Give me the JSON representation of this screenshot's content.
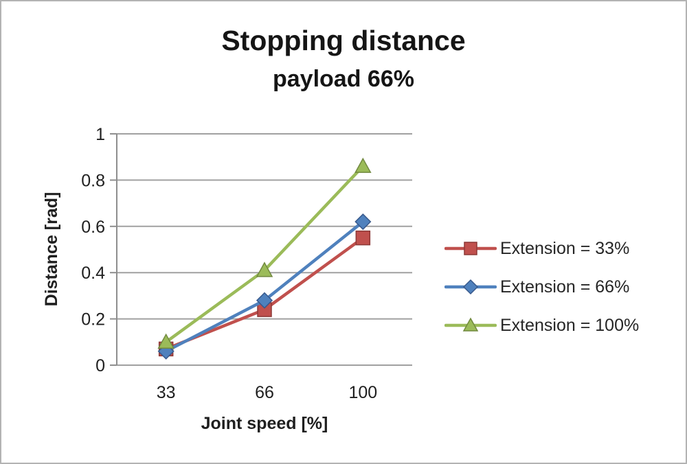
{
  "window": {
    "background": "#ffffff",
    "border_color": "#b3b3b3"
  },
  "chart_data": {
    "type": "line",
    "title": "Stopping distance",
    "subtitle": "payload 66%",
    "xlabel": "Joint speed [%]",
    "ylabel": "Distance [rad]",
    "categories": [
      "33",
      "66",
      "100"
    ],
    "yticks": [
      "0",
      "0.2",
      "0.4",
      "0.6",
      "0.8",
      "1"
    ],
    "ylim": [
      0,
      1
    ],
    "grid": "horizontal",
    "legend_position": "right",
    "axis_color": "#8e8e8e",
    "grid_color": "#a0a0a0",
    "text_color": "#1f1f1f",
    "series": [
      {
        "name": "Extension = 33%",
        "marker": "square",
        "color": "#C0504D",
        "marker_border": "#8C3836",
        "values": [
          0.07,
          0.24,
          0.55
        ]
      },
      {
        "name": "Extension = 66%",
        "marker": "diamond",
        "color": "#4F81BD",
        "marker_border": "#38598C",
        "values": [
          0.06,
          0.28,
          0.62
        ]
      },
      {
        "name": "Extension = 100%",
        "marker": "triangle",
        "color": "#9BBB59",
        "marker_border": "#71893F",
        "values": [
          0.1,
          0.41,
          0.86
        ]
      }
    ]
  }
}
